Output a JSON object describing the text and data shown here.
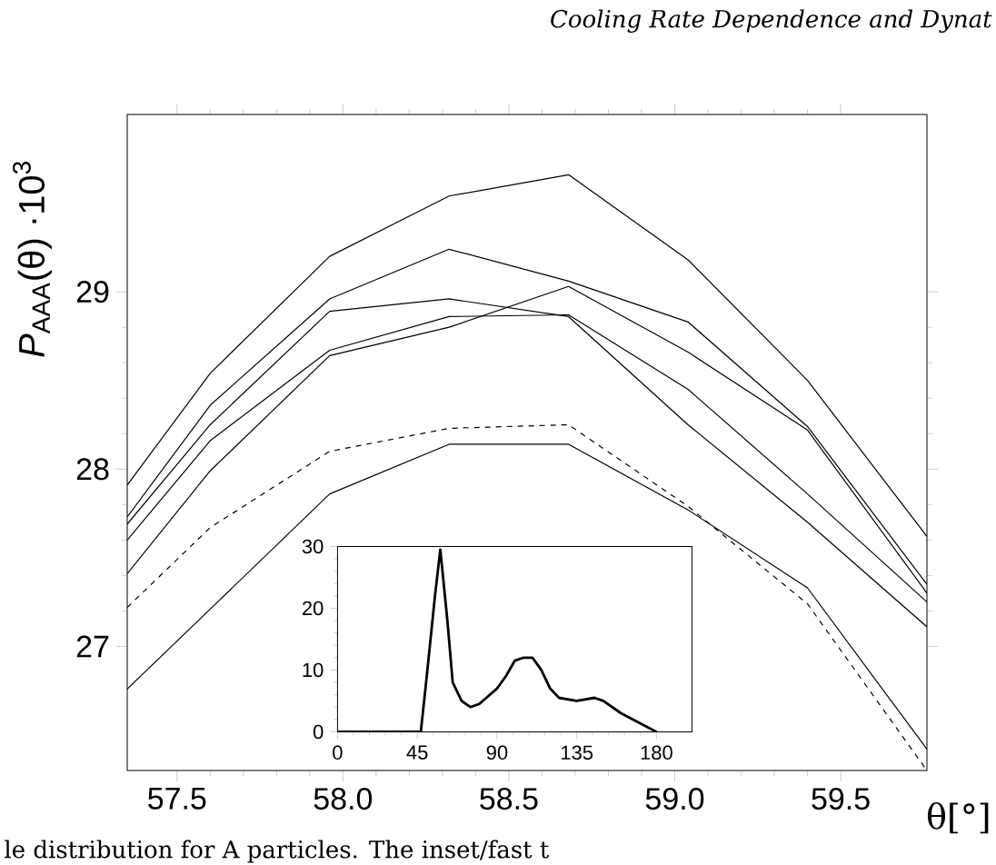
{
  "chart_data": [
    {
      "type": "line",
      "xlabel": "θ[°]",
      "ylabel": "*P*$_{AAA}$(θ) ·10$^{3}$",
      "annotations": [
        "Cooling Rate Dependence and Dynat",
        "le distribution for A particles. The inset/fast t"
      ],
      "x": [
        57.35,
        57.6,
        57.96,
        58.32,
        58.68,
        59.04,
        59.4,
        59.76
      ],
      "xlim": [
        57.35,
        59.76
      ],
      "ylim": [
        26.3,
        30.0
      ],
      "xticks": [
        57.5,
        {
          "value": 58.0,
          "label": "58.0"
        },
        58.5,
        {
          "value": 59.0,
          "label": "59.0"
        },
        59.5
      ],
      "yticks": [
        27,
        28,
        29
      ],
      "series": [
        {
          "color": "#000000",
          "values": [
            27.91,
            28.54,
            29.2,
            29.54,
            29.66,
            29.18,
            28.5,
            27.62
          ]
        },
        {
          "color": "#000000",
          "values": [
            27.73,
            28.36,
            28.96,
            29.24,
            29.06,
            28.83,
            28.24,
            27.35
          ]
        },
        {
          "color": "#000000",
          "values": [
            27.69,
            28.25,
            28.89,
            28.96,
            28.86,
            28.25,
            27.7,
            27.11
          ]
        },
        {
          "color": "#000000",
          "values": [
            27.6,
            28.16,
            28.67,
            28.86,
            28.87,
            28.45,
            27.86,
            27.25
          ]
        },
        {
          "color": "#000000",
          "values": [
            27.41,
            27.99,
            28.64,
            28.8,
            29.03,
            28.66,
            28.22,
            27.3
          ]
        },
        {
          "color": "#000000",
          "line_style": "dashed",
          "values": [
            27.22,
            27.67,
            28.1,
            28.23,
            28.25,
            27.79,
            27.24,
            26.3
          ]
        },
        {
          "color": "#000000",
          "values": [
            26.76,
            27.21,
            27.86,
            28.14,
            28.14,
            27.77,
            27.33,
            26.42
          ]
        }
      ]
    },
    {
      "type": "line",
      "x": [
        0,
        45,
        47,
        50,
        55,
        58,
        62,
        65,
        70,
        75,
        80,
        90,
        95,
        100,
        105,
        110,
        115,
        120,
        125,
        135,
        145,
        150,
        160,
        170,
        180
      ],
      "xlim": [
        0,
        200
      ],
      "ylim": [
        0,
        30
      ],
      "xticks": [
        0,
        45,
        90,
        135,
        180
      ],
      "yticks": [
        0,
        10,
        20,
        30
      ],
      "series": [
        {
          "color": "#000000",
          "values": [
            0,
            0,
            0,
            8,
            22,
            29.5,
            18,
            8,
            5,
            4,
            4.5,
            7,
            9,
            11.5,
            12,
            12,
            10,
            7,
            5.5,
            5,
            5.5,
            5,
            3,
            1.5,
            0
          ]
        }
      ]
    }
  ]
}
